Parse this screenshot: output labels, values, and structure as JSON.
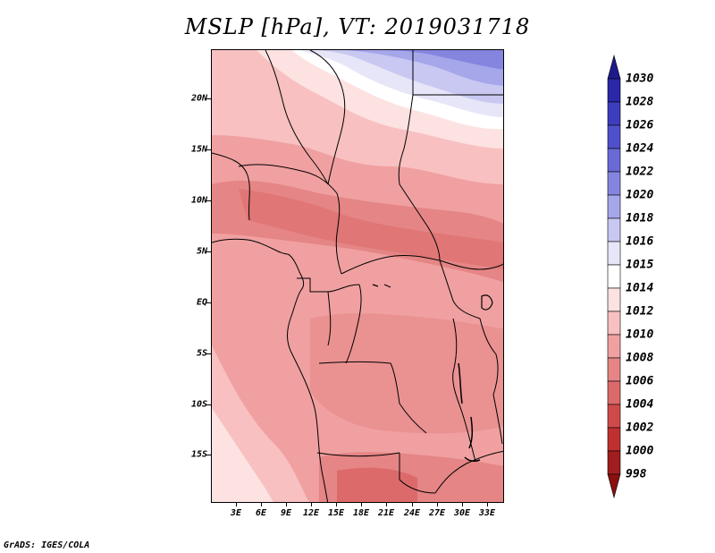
{
  "title": "MSLP [hPa], VT: 2019031718",
  "footer": "GrADS: IGES/COLA",
  "map": {
    "lat_labels": [
      "20N",
      "15N",
      "10N",
      "5N",
      "EQ",
      "5S",
      "10S",
      "15S"
    ],
    "lon_labels": [
      "3E",
      "6E",
      "9E",
      "12E",
      "15E",
      "18E",
      "21E",
      "24E",
      "27E",
      "30E",
      "33E"
    ],
    "extent": {
      "lon": [
        0,
        35
      ],
      "lat": [
        -19.5,
        25
      ]
    },
    "variable": "MSLP",
    "units": "hPa"
  },
  "colorbar": {
    "levels": [
      "1030",
      "1028",
      "1026",
      "1024",
      "1022",
      "1020",
      "1018",
      "1016",
      "1015",
      "1014",
      "1012",
      "1010",
      "1008",
      "1006",
      "1004",
      "1002",
      "1000",
      "998"
    ],
    "colors": [
      "#1e1a8c",
      "#2a28a8",
      "#3d3dbe",
      "#5050cc",
      "#6a6ad6",
      "#8585e0",
      "#a6a6ea",
      "#c8c8f2",
      "#e6e6f8",
      "#ffffff",
      "#fde2e2",
      "#f8c0c0",
      "#f0a0a0",
      "#e58585",
      "#dc6a6a",
      "#d04a4a",
      "#c03030",
      "#a01e1e",
      "#8a1010"
    ]
  }
}
